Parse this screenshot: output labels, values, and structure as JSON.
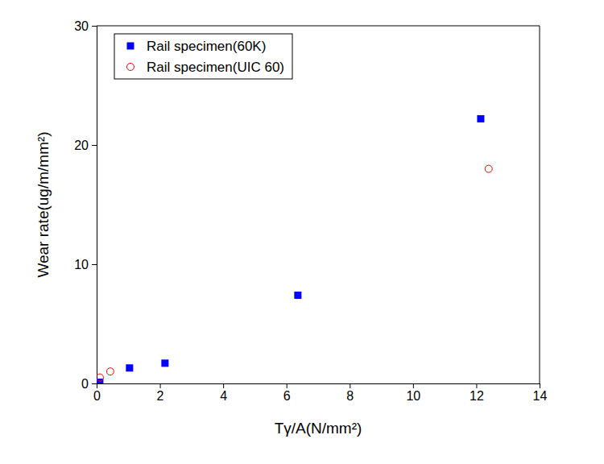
{
  "chart_data": {
    "type": "scatter",
    "x_label": "Tγ/A(N/mm²)",
    "y_label": "Wear rate(ug/m/mm²)",
    "xlim": [
      0,
      14
    ],
    "xticks": [
      0,
      2,
      4,
      6,
      8,
      10,
      12,
      14
    ],
    "ylim": [
      0,
      30
    ],
    "yticks": [
      0,
      10,
      20,
      30
    ],
    "legend": "top-left",
    "series": [
      {
        "name": "Rail specimen(60K)",
        "color": "#0000ff",
        "marker": "square",
        "x": [
          0.1,
          1.04,
          2.16,
          6.36,
          12.14
        ],
        "values": [
          0.1,
          1.3,
          1.7,
          7.4,
          22.2
        ]
      },
      {
        "name": "Rail specimen(UIC 60)",
        "color": "#ff0000",
        "marker": "circle",
        "x": [
          0.1,
          0.43,
          12.39
        ],
        "values": [
          0.5,
          1.0,
          18.0
        ]
      }
    ]
  }
}
